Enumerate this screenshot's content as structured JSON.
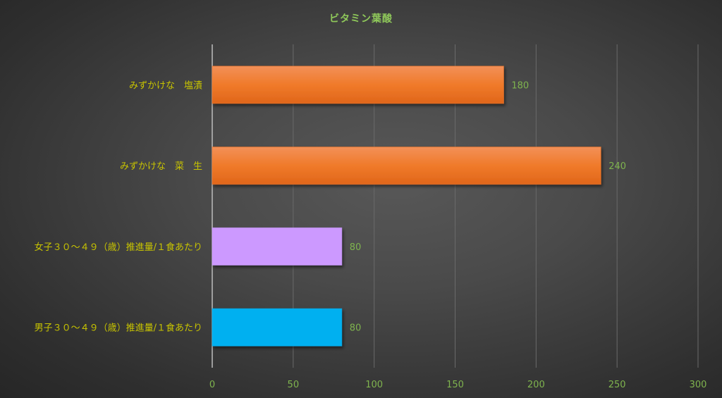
{
  "chart_data": {
    "type": "bar",
    "orientation": "horizontal",
    "title": "ビタミン葉酸",
    "categories": [
      "みずかけな　塩漬",
      "みずかけな　菜　生",
      "女子３０～４９（歳）推進量/１食あたり",
      "男子３０～４９（歳）推進量/１食あたり"
    ],
    "values": [
      180,
      240,
      80,
      80
    ],
    "data_labels": [
      "180",
      "240",
      "80",
      "80"
    ],
    "bar_colors": [
      "#ee7428",
      "#ee7428",
      "#cc99ff",
      "#00b0f0"
    ],
    "xlim": [
      0,
      300
    ],
    "xticks": [
      "0",
      "50",
      "100",
      "150",
      "200",
      "250",
      "300"
    ],
    "xlabel": "",
    "ylabel": "",
    "grid": true,
    "colors": {
      "title": "#8fc85a",
      "category_labels": "#c8c400",
      "tick_labels": "#7fb44e",
      "data_labels": "#7fb44e"
    }
  }
}
